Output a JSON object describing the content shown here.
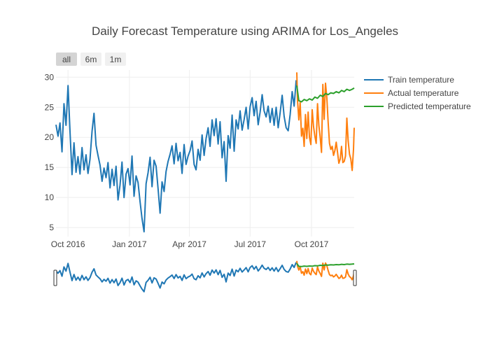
{
  "colors": {
    "train": "#1f77b4",
    "actual": "#ff7f0e",
    "predicted": "#2ca02c",
    "grid": "#eeeeee",
    "button_active": "#d4d4d4",
    "button_inactive": "#f0f0f0",
    "text": "#444444"
  },
  "range_buttons": [
    {
      "label": "all",
      "active": true
    },
    {
      "label": "6m",
      "active": false
    },
    {
      "label": "1m",
      "active": false
    }
  ],
  "chart_data": {
    "type": "line",
    "title": "Daily Forecast Temperature using ARIMA for Los_Angeles",
    "xlabel": "",
    "ylabel": "",
    "x_range": [
      "2016-09-13",
      "2017-12-04"
    ],
    "ylim": [
      3.5,
      31.2
    ],
    "grid": true,
    "legend_position": "top-right",
    "x_ticks": [
      {
        "date": "2016-10-01",
        "label": "Oct 2016"
      },
      {
        "date": "2017-01-01",
        "label": "Jan 2017"
      },
      {
        "date": "2017-04-01",
        "label": "Apr 2017"
      },
      {
        "date": "2017-07-01",
        "label": "Jul 2017"
      },
      {
        "date": "2017-10-01",
        "label": "Oct 2017"
      }
    ],
    "y_ticks": [
      {
        "value": 5,
        "label": "5"
      },
      {
        "value": 10,
        "label": "10"
      },
      {
        "value": 15,
        "label": "15"
      },
      {
        "value": 20,
        "label": "20"
      },
      {
        "value": 25,
        "label": "25"
      },
      {
        "value": 30,
        "label": "30"
      }
    ],
    "range_slider": true,
    "series": [
      {
        "name": "Train temperature",
        "key": "train",
        "x": [
          "2016-09-13",
          "2016-09-16",
          "2016-09-19",
          "2016-09-22",
          "2016-09-25",
          "2016-09-28",
          "2016-10-01",
          "2016-10-04",
          "2016-10-07",
          "2016-10-10",
          "2016-10-13",
          "2016-10-16",
          "2016-10-19",
          "2016-10-22",
          "2016-10-25",
          "2016-10-28",
          "2016-10-31",
          "2016-11-03",
          "2016-11-06",
          "2016-11-09",
          "2016-11-12",
          "2016-11-15",
          "2016-11-18",
          "2016-11-21",
          "2016-11-24",
          "2016-11-27",
          "2016-11-30",
          "2016-12-03",
          "2016-12-06",
          "2016-12-09",
          "2016-12-12",
          "2016-12-15",
          "2016-12-18",
          "2016-12-21",
          "2016-12-24",
          "2016-12-27",
          "2016-12-30",
          "2017-01-02",
          "2017-01-05",
          "2017-01-08",
          "2017-01-11",
          "2017-01-14",
          "2017-01-17",
          "2017-01-20",
          "2017-01-23",
          "2017-01-26",
          "2017-01-29",
          "2017-02-01",
          "2017-02-04",
          "2017-02-07",
          "2017-02-10",
          "2017-02-13",
          "2017-02-16",
          "2017-02-19",
          "2017-02-22",
          "2017-02-25",
          "2017-02-28",
          "2017-03-03",
          "2017-03-06",
          "2017-03-09",
          "2017-03-12",
          "2017-03-15",
          "2017-03-18",
          "2017-03-21",
          "2017-03-24",
          "2017-03-27",
          "2017-03-30",
          "2017-04-02",
          "2017-04-05",
          "2017-04-08",
          "2017-04-11",
          "2017-04-14",
          "2017-04-17",
          "2017-04-20",
          "2017-04-23",
          "2017-04-26",
          "2017-04-29",
          "2017-05-02",
          "2017-05-05",
          "2017-05-08",
          "2017-05-11",
          "2017-05-14",
          "2017-05-17",
          "2017-05-20",
          "2017-05-23",
          "2017-05-26",
          "2017-05-29",
          "2017-06-01",
          "2017-06-04",
          "2017-06-07",
          "2017-06-10",
          "2017-06-13",
          "2017-06-16",
          "2017-06-19",
          "2017-06-22",
          "2017-06-25",
          "2017-06-28",
          "2017-07-01",
          "2017-07-04",
          "2017-07-07",
          "2017-07-10",
          "2017-07-13",
          "2017-07-16",
          "2017-07-19",
          "2017-07-22",
          "2017-07-25",
          "2017-07-28",
          "2017-07-31",
          "2017-08-03",
          "2017-08-06",
          "2017-08-09",
          "2017-08-12",
          "2017-08-15",
          "2017-08-18",
          "2017-08-21",
          "2017-08-24",
          "2017-08-27",
          "2017-08-30",
          "2017-09-02",
          "2017-09-05",
          "2017-09-08"
        ],
        "y": [
          22.1,
          20.2,
          22.4,
          17.6,
          25.6,
          22.0,
          28.6,
          21.0,
          13.8,
          19.1,
          14.2,
          16.8,
          13.9,
          18.3,
          14.6,
          17.1,
          14.0,
          16.4,
          21.0,
          24.0,
          18.7,
          17.0,
          15.4,
          12.7,
          14.9,
          13.3,
          15.8,
          11.6,
          14.7,
          12.0,
          15.2,
          9.6,
          12.1,
          15.9,
          10.0,
          13.9,
          14.8,
          12.1,
          16.9,
          10.2,
          13.6,
          12.5,
          9.3,
          6.5,
          4.3,
          12.3,
          14.1,
          16.7,
          11.8,
          16.2,
          15.2,
          11.5,
          7.4,
          12.6,
          11.0,
          14.3,
          16.0,
          17.2,
          18.6,
          15.6,
          19.0,
          16.1,
          17.5,
          14.0,
          18.8,
          15.5,
          16.9,
          17.8,
          19.4,
          15.5,
          14.6,
          18.0,
          16.2,
          20.4,
          17.0,
          19.8,
          21.6,
          18.5,
          22.9,
          20.3,
          23.1,
          18.9,
          22.6,
          16.6,
          19.3,
          12.7,
          20.3,
          18.2,
          23.7,
          17.7,
          22.9,
          21.4,
          24.4,
          21.2,
          23.0,
          25.0,
          21.4,
          25.1,
          26.6,
          23.6,
          26.0,
          22.1,
          24.2,
          27.1,
          24.4,
          23.4,
          25.2,
          22.5,
          24.8,
          22.0,
          25.0,
          21.6,
          24.1,
          27.0,
          23.5,
          21.6,
          21.1,
          23.8,
          27.6,
          25.2,
          29.5
        ]
      },
      {
        "name": "Actual temperature",
        "key": "actual",
        "x": [
          "2017-09-09",
          "2017-09-10",
          "2017-09-12",
          "2017-09-14",
          "2017-09-16",
          "2017-09-18",
          "2017-09-20",
          "2017-09-22",
          "2017-09-24",
          "2017-09-26",
          "2017-09-28",
          "2017-09-30",
          "2017-10-02",
          "2017-10-04",
          "2017-10-06",
          "2017-10-08",
          "2017-10-10",
          "2017-10-12",
          "2017-10-14",
          "2017-10-16",
          "2017-10-18",
          "2017-10-20",
          "2017-10-22",
          "2017-10-24",
          "2017-10-26",
          "2017-10-28",
          "2017-10-30",
          "2017-11-01",
          "2017-11-03",
          "2017-11-05",
          "2017-11-07",
          "2017-11-09",
          "2017-11-11",
          "2017-11-13",
          "2017-11-15",
          "2017-11-17",
          "2017-11-19",
          "2017-11-21",
          "2017-11-23",
          "2017-11-25",
          "2017-11-27",
          "2017-11-29",
          "2017-12-01",
          "2017-12-03",
          "2017-12-04"
        ],
        "y": [
          30.8,
          26.2,
          22.9,
          25.8,
          20.2,
          21.5,
          18.5,
          23.8,
          19.8,
          24.2,
          20.0,
          18.8,
          24.6,
          21.8,
          20.2,
          19.0,
          25.6,
          22.0,
          20.0,
          17.5,
          28.8,
          23.0,
          29.0,
          26.6,
          22.5,
          19.0,
          18.0,
          18.5,
          17.0,
          17.8,
          19.2,
          17.5,
          15.7,
          16.4,
          18.5,
          15.8,
          16.0,
          16.9,
          23.2,
          19.4,
          17.2,
          16.4,
          14.5,
          18.0,
          21.6
        ]
      },
      {
        "name": "Predicted temperature",
        "key": "predicted",
        "x": [
          "2017-09-09",
          "2017-09-12",
          "2017-09-16",
          "2017-09-20",
          "2017-09-24",
          "2017-09-28",
          "2017-10-02",
          "2017-10-06",
          "2017-10-10",
          "2017-10-14",
          "2017-10-18",
          "2017-10-22",
          "2017-10-26",
          "2017-10-30",
          "2017-11-03",
          "2017-11-07",
          "2017-11-11",
          "2017-11-15",
          "2017-11-19",
          "2017-11-23",
          "2017-11-27",
          "2017-12-01",
          "2017-12-04"
        ],
        "y": [
          28.6,
          26.1,
          25.9,
          26.3,
          26.1,
          26.4,
          26.2,
          26.7,
          26.5,
          27.0,
          26.8,
          27.3,
          27.1,
          27.4,
          27.3,
          27.6,
          27.4,
          27.8,
          27.6,
          28.0,
          27.8,
          28.0,
          28.2
        ]
      }
    ]
  }
}
